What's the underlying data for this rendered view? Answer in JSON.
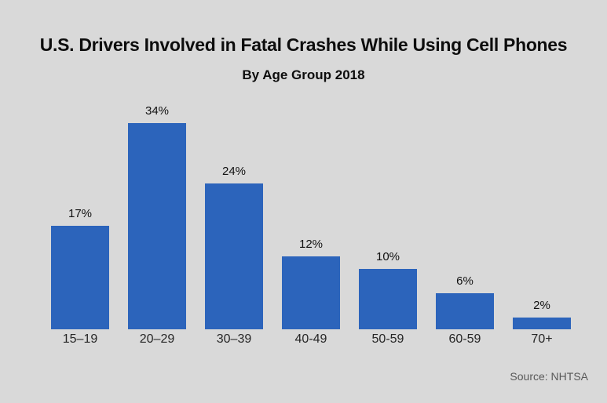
{
  "chart": {
    "title": "U.S. Drivers Involved in Fatal Crashes While Using Cell Phones",
    "subtitle": "By Age Group 2018",
    "source": "Source: NHTSA"
  },
  "chart_data": {
    "type": "bar",
    "categories": [
      "15–19",
      "20–29",
      "30–39",
      "40-49",
      "50-59",
      "60-59",
      "70+"
    ],
    "values": [
      17,
      34,
      24,
      12,
      10,
      6,
      2
    ],
    "value_labels": [
      "17%",
      "34%",
      "24%",
      "12%",
      "10%",
      "6%",
      "2%"
    ],
    "title": "U.S. Drivers Involved in Fatal Crashes While Using Cell Phones",
    "subtitle": "By Age Group 2018",
    "source": "Source: NHTSA",
    "xlabel": "",
    "ylabel": "",
    "ylim": [
      0,
      40
    ],
    "grid": false,
    "legend": false,
    "colors": {
      "bar": "#2c64bb",
      "background": "#d9d9d9",
      "title_text": "#0d0d0d",
      "axis_text": "#262626",
      "source_text": "#595959"
    }
  }
}
